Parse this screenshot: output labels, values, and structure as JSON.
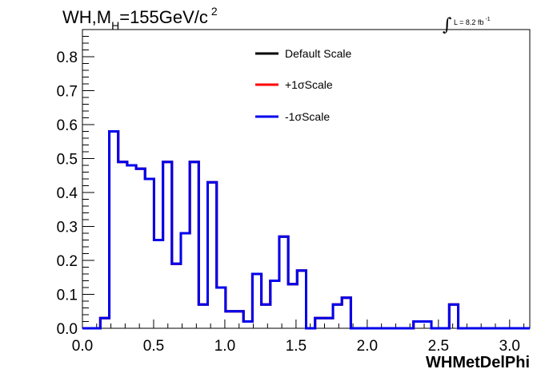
{
  "chart_data": {
    "type": "histogram-step",
    "title": "WH,M",
    "title_subscript": "H",
    "title_suffix": "=155GeV/c",
    "title_superscript": "2",
    "lumi_text": "L = 8.2 fb",
    "lumi_superscript": "-1",
    "xlabel": "WHMetDelPhi",
    "ylabel": "",
    "xlim": [
      0,
      3.1416
    ],
    "ylim": [
      0,
      0.88
    ],
    "x_ticks": [
      0.0,
      0.5,
      1.0,
      1.5,
      2.0,
      2.5,
      3.0
    ],
    "x_tick_labels": [
      "0.0",
      "0.5",
      "1.0",
      "1.5",
      "2.0",
      "2.5",
      "3.0"
    ],
    "y_ticks": [
      0.0,
      0.1,
      0.2,
      0.3,
      0.4,
      0.5,
      0.6,
      0.7,
      0.8
    ],
    "y_tick_labels": [
      "0.0",
      "0.1",
      "0.2",
      "0.3",
      "0.4",
      "0.5",
      "0.6",
      "0.7",
      "0.8"
    ],
    "grid": false,
    "legend_position": "top-center",
    "bin_edges": [
      0.0,
      0.0628,
      0.1257,
      0.1885,
      0.2513,
      0.3142,
      0.377,
      0.4398,
      0.5027,
      0.5655,
      0.6283,
      0.6912,
      0.754,
      0.8168,
      0.8796,
      0.9425,
      1.0053,
      1.0681,
      1.131,
      1.1938,
      1.2566,
      1.3195,
      1.3823,
      1.4451,
      1.508,
      1.5708,
      1.6336,
      1.6965,
      1.7593,
      1.8221,
      1.885,
      1.9478,
      2.0106,
      2.0735,
      2.1363,
      2.1991,
      2.2619,
      2.3248,
      2.3876,
      2.4504,
      2.5133,
      2.5761,
      2.6389,
      2.7018,
      2.7646,
      2.8274,
      2.8903,
      2.9531,
      3.0159,
      3.0788,
      3.1416
    ],
    "series": [
      {
        "name": "Default Scale",
        "color": "#000000",
        "values": [
          0.0,
          0.0,
          0.03,
          0.58,
          0.49,
          0.48,
          0.47,
          0.44,
          0.26,
          0.49,
          0.19,
          0.28,
          0.49,
          0.07,
          0.43,
          0.12,
          0.05,
          0.05,
          0.02,
          0.16,
          0.07,
          0.14,
          0.27,
          0.13,
          0.17,
          0.0,
          0.03,
          0.03,
          0.07,
          0.09,
          0.0,
          0.0,
          0.0,
          0.0,
          0.0,
          0.0,
          0.0,
          0.02,
          0.02,
          0.0,
          0.0,
          0.07,
          0.0,
          0.0,
          0.0,
          0.0,
          0.0,
          0.0,
          0.0,
          0.0
        ]
      },
      {
        "name": "+1σScale",
        "color": "#ff0000",
        "values": [
          0.0,
          0.0,
          0.03,
          0.58,
          0.49,
          0.48,
          0.47,
          0.44,
          0.26,
          0.49,
          0.19,
          0.28,
          0.49,
          0.07,
          0.43,
          0.12,
          0.05,
          0.05,
          0.02,
          0.16,
          0.07,
          0.14,
          0.27,
          0.13,
          0.17,
          0.0,
          0.03,
          0.03,
          0.07,
          0.09,
          0.0,
          0.0,
          0.0,
          0.0,
          0.0,
          0.0,
          0.0,
          0.02,
          0.02,
          0.0,
          0.0,
          0.07,
          0.0,
          0.0,
          0.0,
          0.0,
          0.0,
          0.0,
          0.0,
          0.0
        ]
      },
      {
        "name": "-1σScale",
        "color": "#0000ee",
        "values": [
          0.0,
          0.0,
          0.03,
          0.58,
          0.49,
          0.48,
          0.47,
          0.44,
          0.26,
          0.49,
          0.19,
          0.28,
          0.49,
          0.07,
          0.43,
          0.12,
          0.05,
          0.05,
          0.02,
          0.16,
          0.07,
          0.14,
          0.27,
          0.13,
          0.17,
          0.0,
          0.03,
          0.03,
          0.07,
          0.09,
          0.0,
          0.0,
          0.0,
          0.0,
          0.0,
          0.0,
          0.0,
          0.02,
          0.02,
          0.0,
          0.0,
          0.07,
          0.0,
          0.0,
          0.0,
          0.0,
          0.0,
          0.0,
          0.0,
          0.0
        ]
      }
    ]
  }
}
